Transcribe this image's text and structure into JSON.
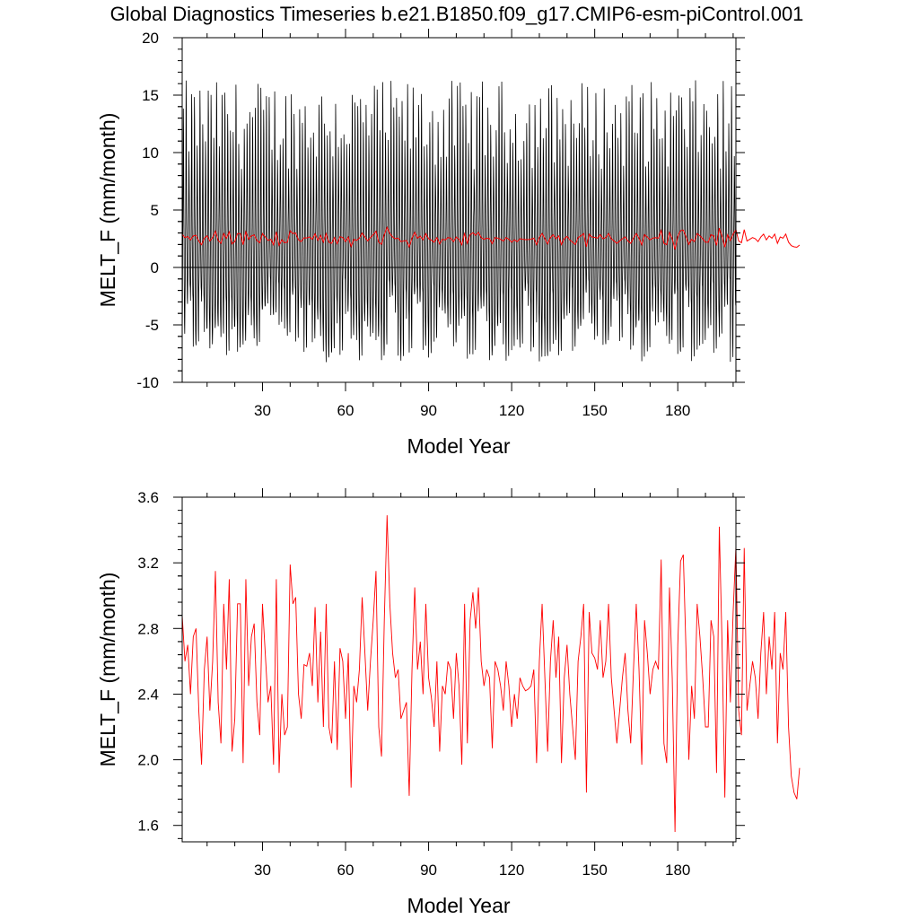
{
  "title": "Global Diagnostics Timeseries b.e21.B1850.f09_g17.CMIP6-esm-piControl.001",
  "colors": {
    "monthly": "#000000",
    "annual": "#ff0000",
    "zero_line": "#000000"
  },
  "chart_data": [
    {
      "type": "line",
      "xlabel": "Model Year",
      "ylabel": "MELT_F (mm/month)",
      "xlim": [
        1,
        201
      ],
      "ylim": [
        -10,
        20
      ],
      "xticks": [
        30,
        60,
        90,
        120,
        150,
        180
      ],
      "yticks": [
        -10,
        -5,
        0,
        5,
        10,
        15,
        20
      ],
      "ytick_labels": [
        "-10",
        "-5",
        "0",
        "5",
        "10",
        "15",
        "20"
      ],
      "reference_line_y": 0,
      "series": [
        {
          "role": "monthly",
          "color": "#000000",
          "seasonal_min_range": [
            -8.3,
            -1.0
          ],
          "seasonal_max_range": [
            8.5,
            16.3
          ]
        },
        {
          "role": "annual",
          "color": "#ff0000",
          "values_source": "same as panel 2"
        }
      ]
    },
    {
      "type": "line",
      "xlabel": "Model Year",
      "ylabel": "MELT_F (mm/month)",
      "xlim": [
        1,
        201
      ],
      "ylim": [
        1.5,
        3.6
      ],
      "xticks": [
        30,
        60,
        90,
        120,
        150,
        180
      ],
      "yticks": [
        1.6,
        2.0,
        2.4,
        2.8,
        3.2,
        3.6
      ],
      "ytick_labels": [
        "1.6",
        "2.0",
        "2.4",
        "2.8",
        "3.2",
        "3.6"
      ],
      "series": [
        {
          "role": "annual",
          "color": "#ff0000",
          "x_start": 1,
          "values": [
            2.88,
            2.6,
            2.7,
            2.4,
            2.75,
            2.8,
            2.3,
            1.97,
            2.55,
            2.75,
            2.3,
            2.6,
            3.15,
            2.35,
            2.1,
            2.95,
            2.55,
            3.1,
            2.05,
            2.25,
            2.95,
            2.95,
            1.98,
            3.1,
            2.45,
            2.75,
            2.83,
            2.35,
            2.15,
            2.95,
            2.65,
            2.35,
            2.45,
            1.97,
            3.1,
            1.92,
            2.4,
            2.15,
            2.2,
            3.19,
            2.95,
            2.99,
            2.4,
            2.25,
            2.58,
            2.57,
            2.65,
            2.45,
            2.93,
            2.35,
            2.78,
            2.2,
            2.95,
            2.2,
            2.1,
            2.6,
            2.06,
            2.68,
            2.6,
            2.25,
            2.65,
            1.83,
            2.45,
            2.35,
            2.55,
            2.99,
            2.65,
            2.3,
            2.6,
            2.85,
            3.15,
            2.2,
            2.02,
            2.85,
            3.49,
            2.95,
            2.65,
            2.5,
            2.55,
            2.25,
            2.3,
            2.35,
            1.78,
            2.55,
            3.05,
            2.55,
            2.72,
            2.4,
            2.95,
            2.5,
            2.38,
            2.2,
            2.6,
            2.05,
            2.45,
            2.4,
            2.6,
            2.55,
            2.25,
            2.65,
            2.45,
            1.97,
            2.95,
            2.1,
            2.85,
            3.02,
            2.8,
            3.05,
            2.6,
            2.45,
            2.55,
            2.5,
            2.07,
            2.6,
            2.55,
            2.45,
            2.3,
            2.6,
            2.45,
            2.2,
            2.4,
            2.25,
            2.5,
            2.45,
            2.42,
            2.43,
            2.45,
            2.55,
            1.98,
            2.6,
            2.95,
            2.5,
            2.05,
            2.6,
            2.85,
            2.5,
            2.75,
            1.98,
            2.5,
            2.7,
            2.4,
            2.2,
            2.0,
            2.6,
            2.75,
            2.95,
            1.8,
            2.9,
            2.65,
            2.62,
            2.55,
            2.85,
            2.5,
            2.6,
            2.95,
            2.5,
            2.3,
            2.1,
            2.3,
            2.5,
            2.65,
            2.3,
            2.1,
            2.55,
            2.95,
            2.55,
            1.97,
            2.85,
            2.65,
            2.4,
            2.55,
            2.6,
            2.55,
            3.22,
            2.1,
            1.98,
            3.05,
            2.5,
            1.56,
            2.7,
            3.21,
            3.25,
            2.65,
            2.0,
            2.45,
            2.25,
            2.95,
            2.75,
            2.5,
            2.2,
            2.2,
            2.85,
            2.75,
            1.92,
            3.42,
            2.7,
            1.77,
            2.85,
            2.35,
            2.9,
            3.3,
            2.3,
            2.15,
            3.29,
            2.3,
            2.45,
            2.6,
            2.5,
            2.25,
            2.65,
            2.9,
            2.4,
            2.75,
            2.55,
            2.9,
            2.1,
            2.65,
            2.55,
            2.9,
            2.2,
            1.9,
            1.8,
            1.76,
            1.95
          ]
        }
      ]
    }
  ]
}
